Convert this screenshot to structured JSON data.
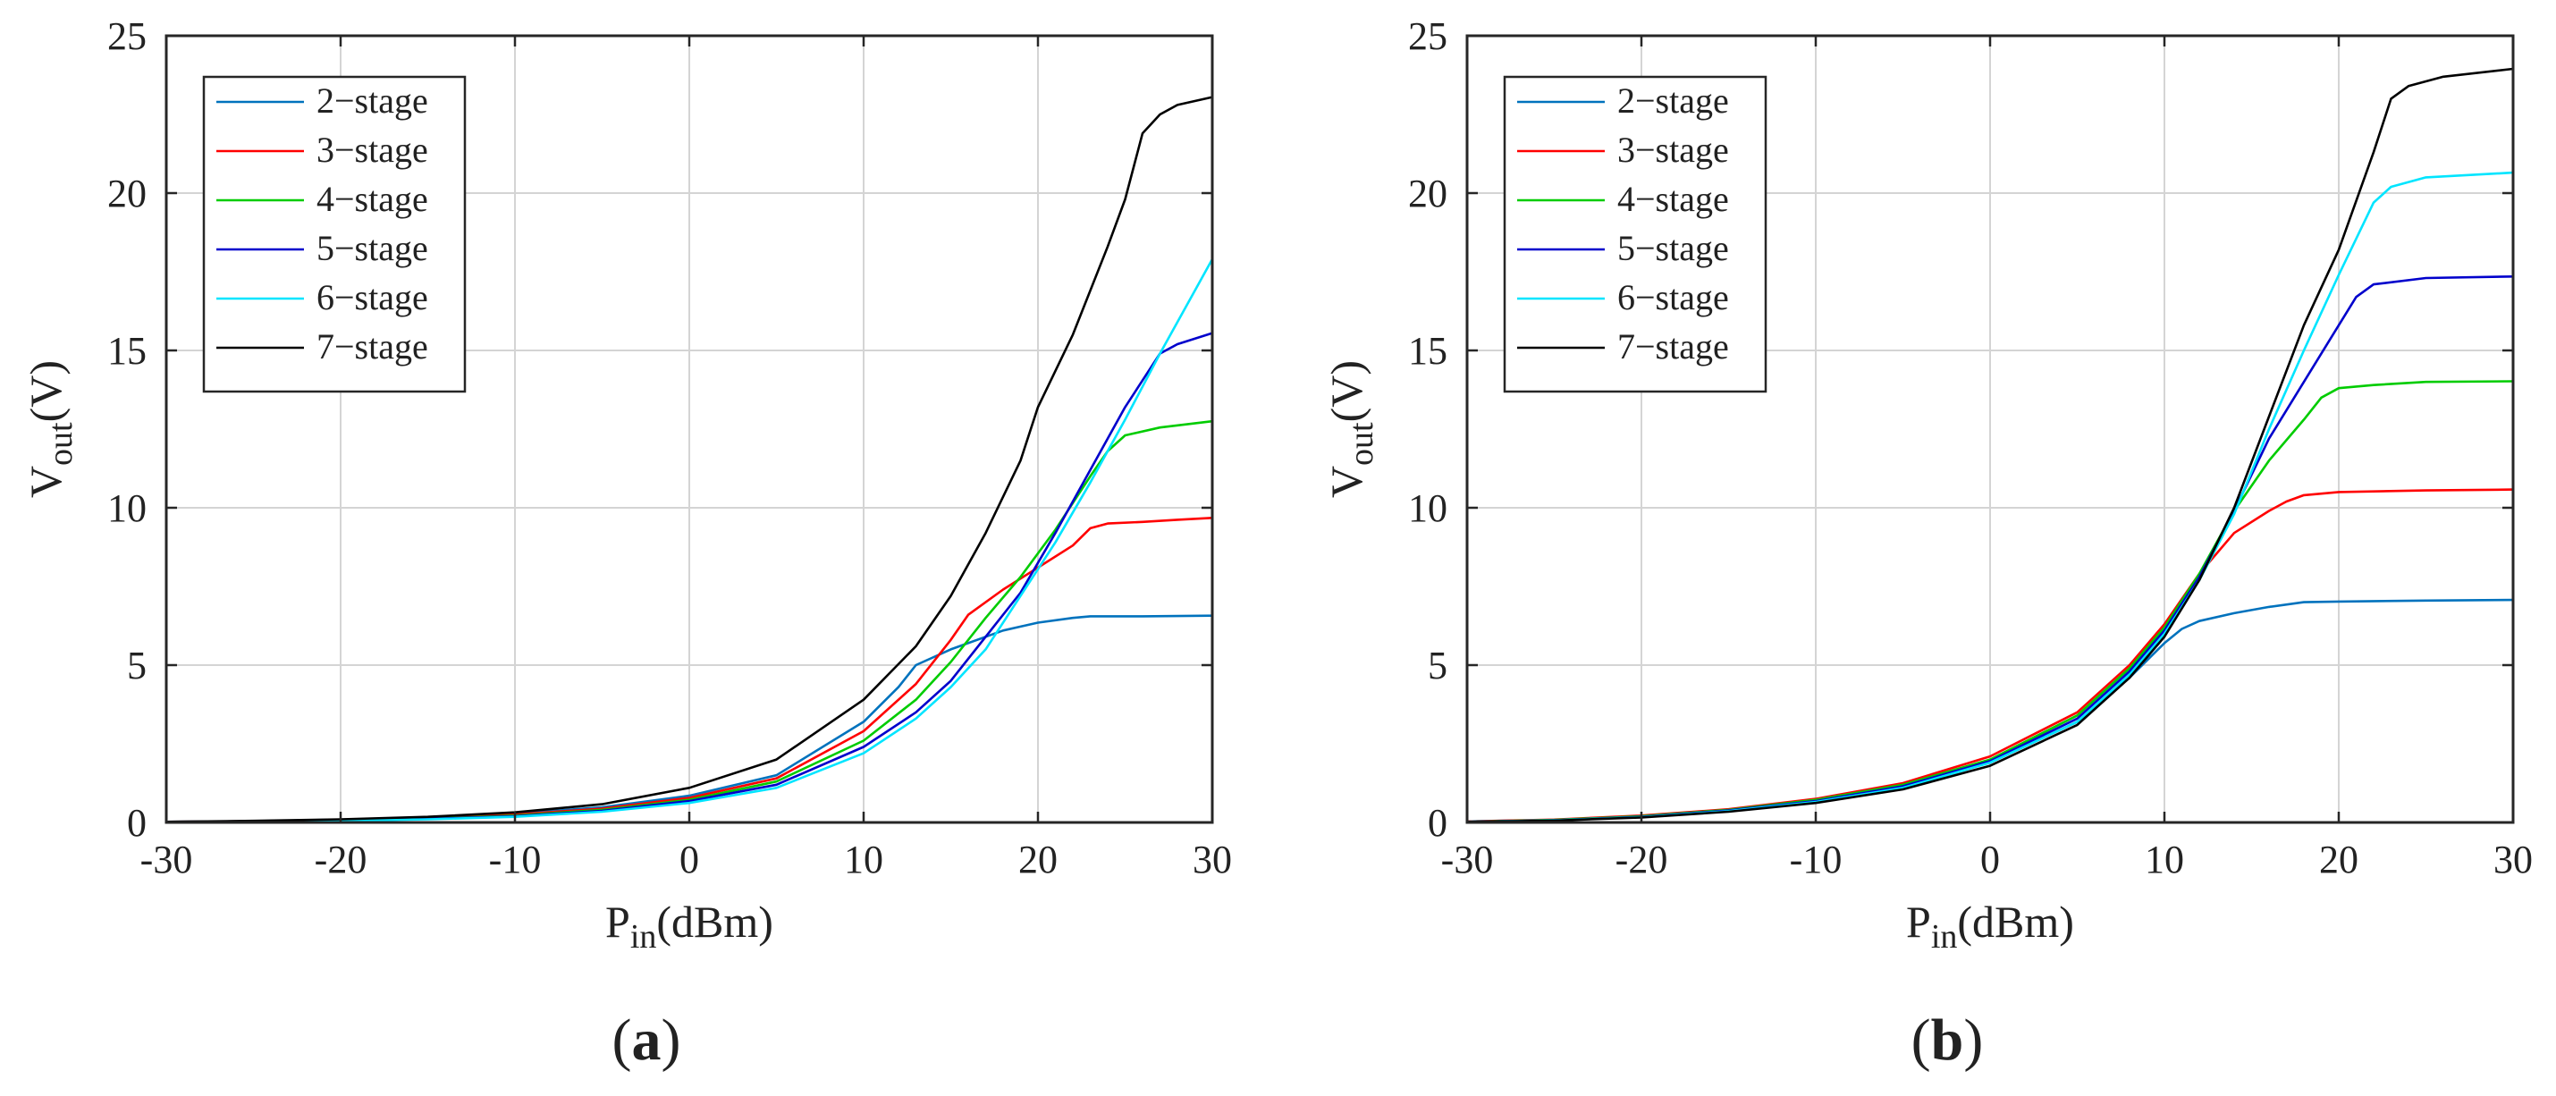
{
  "figure": {
    "colors": {
      "grid": "#d4d4d4",
      "axis": "#262626",
      "legend_border": "#262626"
    }
  },
  "chart_data": [
    {
      "type": "line",
      "panel": "a",
      "panel_label": {
        "open": "(",
        "letter": "a",
        "close": ")"
      },
      "xlabel": {
        "main": "P",
        "sub": "in",
        "unit": "(dBm)"
      },
      "ylabel": {
        "main": "V",
        "sub": "out",
        "unit": "(V)"
      },
      "xlim": [
        -30,
        30
      ],
      "ylim": [
        0,
        25
      ],
      "xticks": [
        -30,
        -20,
        -10,
        0,
        10,
        20,
        30
      ],
      "yticks": [
        0,
        5,
        10,
        15,
        20,
        25
      ],
      "grid": true,
      "legend_position": "top-left",
      "series": [
        {
          "name": "2−stage",
          "color": "#0072BD",
          "x": [
            -30,
            -25,
            -20,
            -15,
            -10,
            -5,
            0,
            5,
            10,
            12,
            13,
            15,
            18,
            20,
            22,
            23,
            24,
            26,
            28,
            30
          ],
          "y": [
            0.02,
            0.04,
            0.09,
            0.16,
            0.28,
            0.48,
            0.85,
            1.5,
            3.2,
            4.3,
            5.0,
            5.5,
            6.1,
            6.35,
            6.5,
            6.55,
            6.55,
            6.55,
            6.56,
            6.57
          ]
        },
        {
          "name": "3−stage",
          "color": "#FF0000",
          "x": [
            -30,
            -25,
            -20,
            -15,
            -10,
            -5,
            0,
            5,
            10,
            13,
            15,
            16,
            18,
            20,
            22,
            23,
            24,
            26,
            28,
            30
          ],
          "y": [
            0.02,
            0.04,
            0.08,
            0.14,
            0.25,
            0.44,
            0.78,
            1.4,
            2.9,
            4.4,
            5.8,
            6.6,
            7.4,
            8.1,
            8.8,
            9.35,
            9.5,
            9.55,
            9.62,
            9.68
          ]
        },
        {
          "name": "4−stage",
          "color": "#00CC00",
          "x": [
            -30,
            -25,
            -20,
            -15,
            -10,
            -5,
            0,
            5,
            10,
            13,
            15,
            17,
            19,
            21,
            23,
            24,
            25,
            27,
            30
          ],
          "y": [
            0.02,
            0.03,
            0.07,
            0.12,
            0.22,
            0.4,
            0.72,
            1.3,
            2.6,
            3.9,
            5.1,
            6.5,
            7.8,
            9.3,
            11.0,
            11.8,
            12.3,
            12.55,
            12.75
          ]
        },
        {
          "name": "5−stage",
          "color": "#0000CC",
          "x": [
            -30,
            -25,
            -20,
            -15,
            -10,
            -5,
            0,
            5,
            10,
            13,
            15,
            17,
            19,
            21,
            23,
            25,
            27,
            28,
            30
          ],
          "y": [
            0.02,
            0.03,
            0.06,
            0.11,
            0.2,
            0.37,
            0.68,
            1.2,
            2.4,
            3.5,
            4.5,
            5.9,
            7.3,
            9.2,
            11.2,
            13.2,
            14.9,
            15.2,
            15.55
          ]
        },
        {
          "name": "6−stage",
          "color": "#00E5FF",
          "x": [
            -30,
            -25,
            -20,
            -15,
            -10,
            -5,
            0,
            5,
            10,
            13,
            15,
            17,
            19,
            21,
            23,
            25,
            27,
            29,
            30
          ],
          "y": [
            0.01,
            0.03,
            0.05,
            0.1,
            0.18,
            0.34,
            0.62,
            1.1,
            2.2,
            3.3,
            4.3,
            5.5,
            7.2,
            8.9,
            10.8,
            12.8,
            14.9,
            16.9,
            17.9
          ]
        },
        {
          "name": "7−stage",
          "color": "#000000",
          "x": [
            -30,
            -25,
            -20,
            -15,
            -10,
            -5,
            0,
            5,
            10,
            13,
            15,
            17,
            19,
            20,
            22,
            24,
            25,
            26,
            27,
            28,
            30
          ],
          "y": [
            0.02,
            0.05,
            0.1,
            0.18,
            0.32,
            0.58,
            1.1,
            2.0,
            3.9,
            5.6,
            7.2,
            9.2,
            11.5,
            13.2,
            15.5,
            18.3,
            19.8,
            21.9,
            22.5,
            22.8,
            23.05
          ]
        }
      ]
    },
    {
      "type": "line",
      "panel": "b",
      "panel_label": {
        "open": "(",
        "letter": "b",
        "close": ")"
      },
      "xlabel": {
        "main": "P",
        "sub": "in",
        "unit": "(dBm)"
      },
      "ylabel": {
        "main": "V",
        "sub": "out",
        "unit": "(V)"
      },
      "xlim": [
        -30,
        30
      ],
      "ylim": [
        0,
        25
      ],
      "xticks": [
        -30,
        -20,
        -10,
        0,
        10,
        20,
        30
      ],
      "yticks": [
        0,
        5,
        10,
        15,
        20,
        25
      ],
      "grid": true,
      "legend_position": "top-left",
      "series": [
        {
          "name": "2−stage",
          "color": "#0072BD",
          "x": [
            -30,
            -25,
            -20,
            -15,
            -10,
            -5,
            0,
            5,
            8,
            10,
            11,
            12,
            14,
            16,
            18,
            20,
            25,
            30
          ],
          "y": [
            0.03,
            0.08,
            0.2,
            0.4,
            0.7,
            1.15,
            1.9,
            3.2,
            4.6,
            5.7,
            6.15,
            6.4,
            6.65,
            6.85,
            7.0,
            7.02,
            7.05,
            7.07
          ]
        },
        {
          "name": "3−stage",
          "color": "#FF0000",
          "x": [
            -30,
            -25,
            -20,
            -15,
            -10,
            -5,
            0,
            5,
            8,
            10,
            12,
            14,
            16,
            17,
            18,
            20,
            25,
            30
          ],
          "y": [
            0.03,
            0.09,
            0.22,
            0.42,
            0.75,
            1.25,
            2.1,
            3.5,
            5.0,
            6.3,
            7.9,
            9.2,
            9.9,
            10.2,
            10.4,
            10.5,
            10.55,
            10.58
          ]
        },
        {
          "name": "4−stage",
          "color": "#00CC00",
          "x": [
            -30,
            -25,
            -20,
            -15,
            -10,
            -5,
            0,
            5,
            8,
            10,
            12,
            14,
            16,
            18,
            19,
            20,
            22,
            25,
            30
          ],
          "y": [
            0.02,
            0.08,
            0.2,
            0.4,
            0.72,
            1.2,
            2.0,
            3.4,
            4.9,
            6.2,
            7.9,
            9.9,
            11.5,
            12.8,
            13.5,
            13.8,
            13.9,
            14.0,
            14.02
          ]
        },
        {
          "name": "5−stage",
          "color": "#0000CC",
          "x": [
            -30,
            -25,
            -20,
            -15,
            -10,
            -5,
            0,
            5,
            8,
            10,
            12,
            14,
            16,
            18,
            20,
            21,
            22,
            25,
            30
          ],
          "y": [
            0.02,
            0.07,
            0.18,
            0.38,
            0.68,
            1.15,
            1.95,
            3.3,
            4.8,
            6.1,
            7.8,
            9.9,
            12.2,
            14.0,
            15.8,
            16.7,
            17.1,
            17.3,
            17.35
          ]
        },
        {
          "name": "6−stage",
          "color": "#00E5FF",
          "x": [
            -30,
            -25,
            -20,
            -15,
            -10,
            -5,
            0,
            5,
            8,
            10,
            12,
            14,
            16,
            18,
            20,
            22,
            23,
            25,
            30
          ],
          "y": [
            0.02,
            0.07,
            0.17,
            0.36,
            0.65,
            1.1,
            1.9,
            3.2,
            4.7,
            6.0,
            7.7,
            9.8,
            12.5,
            15.0,
            17.4,
            19.7,
            20.2,
            20.5,
            20.65
          ]
        },
        {
          "name": "7−stage",
          "color": "#000000",
          "x": [
            -30,
            -25,
            -20,
            -15,
            -10,
            -5,
            0,
            5,
            8,
            10,
            12,
            14,
            16,
            18,
            20,
            22,
            23,
            24,
            26,
            30
          ],
          "y": [
            0.02,
            0.06,
            0.16,
            0.34,
            0.62,
            1.05,
            1.8,
            3.1,
            4.6,
            5.9,
            7.7,
            10.0,
            12.9,
            15.8,
            18.2,
            21.3,
            23.0,
            23.4,
            23.7,
            23.95
          ]
        }
      ]
    }
  ]
}
